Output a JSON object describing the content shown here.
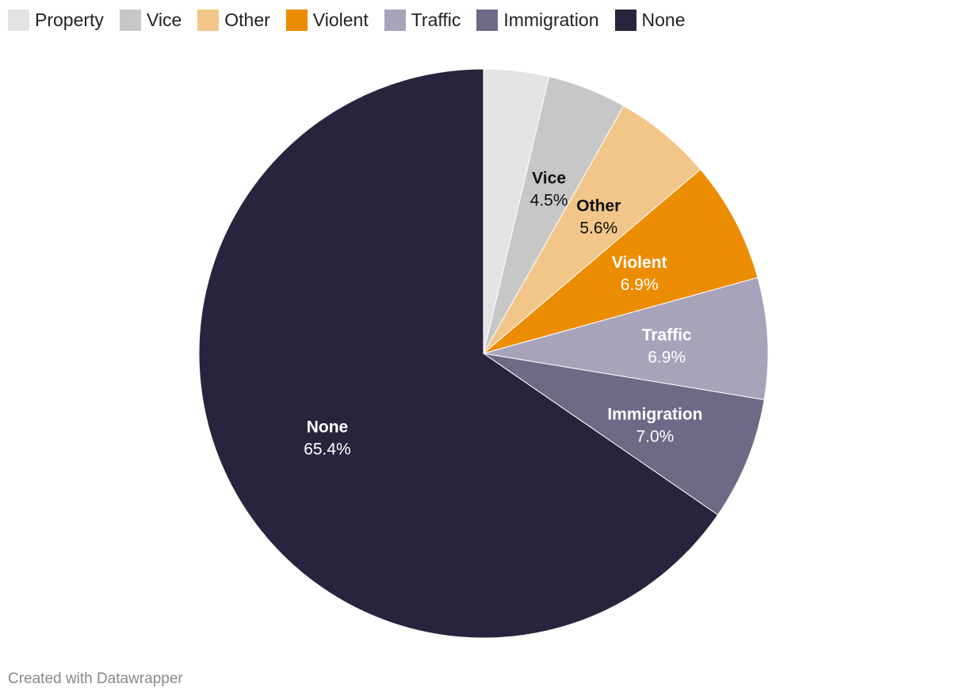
{
  "chart_data": {
    "type": "pie",
    "start": "top",
    "direction": "clockwise",
    "legend_position": "top-left",
    "categories": [
      "Property",
      "Vice",
      "Other",
      "Violent",
      "Traffic",
      "Immigration",
      "None"
    ],
    "values": [
      3.7,
      4.5,
      5.6,
      6.9,
      6.9,
      7.0,
      65.4
    ],
    "slice_labels": [
      {
        "name": "",
        "value": ""
      },
      {
        "name": "Vice",
        "value": "4.5%"
      },
      {
        "name": "Other",
        "value": "5.6%"
      },
      {
        "name": "Violent",
        "value": "6.9%"
      },
      {
        "name": "Traffic",
        "value": "6.9%"
      },
      {
        "name": "Immigration",
        "value": "7.0%"
      },
      {
        "name": "None",
        "value": "65.4%"
      }
    ],
    "colors": [
      "#e3e3e3",
      "#c7c7c7",
      "#f2c689",
      "#ec8c00",
      "#a8a3bb",
      "#6f6987",
      "#29233d"
    ],
    "label_colors": [
      "#222222",
      "#111111",
      "#111111",
      "#ffffff",
      "#ffffff",
      "#ffffff",
      "#ffffff"
    ]
  },
  "legend": [
    {
      "label": "Property",
      "color": "#e3e3e3"
    },
    {
      "label": "Vice",
      "color": "#c7c7c7"
    },
    {
      "label": "Other",
      "color": "#f2c689"
    },
    {
      "label": "Violent",
      "color": "#ec8c00"
    },
    {
      "label": "Traffic",
      "color": "#a8a3bb"
    },
    {
      "label": "Immigration",
      "color": "#6f6987"
    },
    {
      "label": "None",
      "color": "#29233d"
    }
  ],
  "footer": {
    "credit": "Created with Datawrapper"
  }
}
